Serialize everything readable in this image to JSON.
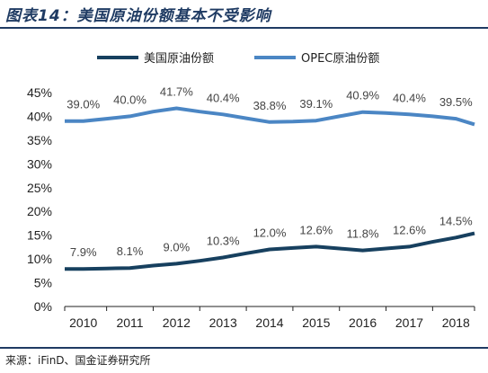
{
  "title": "图表14：美国原油份额基本不受影响",
  "source": "来源：iFinD、国金证券研究所",
  "chart_data": {
    "type": "line",
    "title": "图表14：美国原油份额基本不受影响",
    "xlabel": "",
    "ylabel": "",
    "ylim": [
      0,
      45
    ],
    "y_ticks": [
      "0%",
      "5%",
      "10%",
      "15%",
      "20%",
      "25%",
      "30%",
      "35%",
      "40%",
      "45%"
    ],
    "y_tick_values": [
      0,
      5,
      10,
      15,
      20,
      25,
      30,
      35,
      40,
      45
    ],
    "categories": [
      "2010",
      "2011",
      "2012",
      "2013",
      "2014",
      "2015",
      "2016",
      "2017",
      "2018"
    ],
    "x": [
      2009.6,
      2010,
      2010.5,
      2011,
      2011.5,
      2012,
      2012.5,
      2013,
      2013.5,
      2014,
      2014.5,
      2015,
      2015.5,
      2016,
      2016.5,
      2017,
      2017.5,
      2018,
      2018.4
    ],
    "legend_position": "top",
    "grid": false,
    "series": [
      {
        "name": "美国原油份额",
        "color": "#17405f",
        "values": [
          7.9,
          7.9,
          8.0,
          8.1,
          8.6,
          9.0,
          9.6,
          10.3,
          11.2,
          12.0,
          12.3,
          12.6,
          12.2,
          11.8,
          12.2,
          12.6,
          13.6,
          14.5,
          15.4
        ],
        "labels": [
          "7.9%",
          "8.1%",
          "9.0%",
          "10.3%",
          "12.0%",
          "12.6%",
          "11.8%",
          "12.6%",
          "14.5%"
        ]
      },
      {
        "name": "OPEC原油份额",
        "color": "#4b86c4",
        "values": [
          39.0,
          39.0,
          39.5,
          40.0,
          41.0,
          41.7,
          41.0,
          40.4,
          39.6,
          38.8,
          38.9,
          39.1,
          40.0,
          40.9,
          40.7,
          40.4,
          40.0,
          39.5,
          38.3
        ],
        "labels": [
          "39.0%",
          "40.0%",
          "41.7%",
          "40.4%",
          "38.8%",
          "39.1%",
          "40.9%",
          "40.4%",
          "39.5%"
        ]
      }
    ]
  }
}
